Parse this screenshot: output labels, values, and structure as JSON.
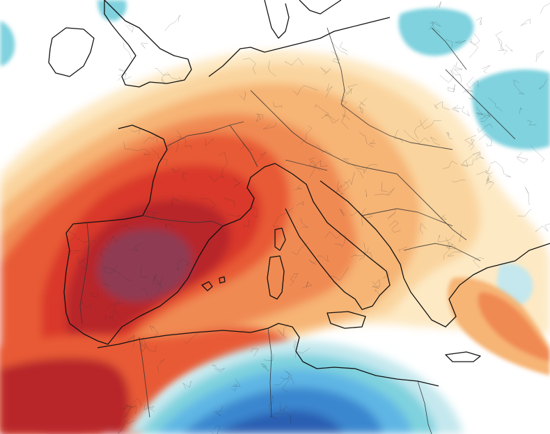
{
  "map": {
    "kind": "temperature anomaly field over Europe and North Africa",
    "has_visible_text": false,
    "palette": {
      "extreme_warm": "#8e3b52",
      "very_warm": "#b8252a",
      "warm_strong": "#d9372a",
      "warm": "#e85a34",
      "mild_warm": "#f08a52",
      "slight_warm": "#f6b475",
      "light_warm": "#fad49e",
      "faint_warm": "#fde9c4",
      "neutral": "#ffffff",
      "faint_cool": "#c4e8ee",
      "cool": "#7fd2de",
      "cold": "#5fb6e4",
      "very_cold": "#3a87cf",
      "extreme_cold": "#2b5fb2",
      "coastline": "#111111",
      "borders": "#333333"
    },
    "features": [
      "coastline-overlay",
      "national-borders",
      "regional-boundaries",
      "warm-anomaly-core-iberia",
      "cold-anomaly-north-africa",
      "cool-patches-scandinavia-poland-ukraine",
      "cool-patch-aegean"
    ]
  }
}
